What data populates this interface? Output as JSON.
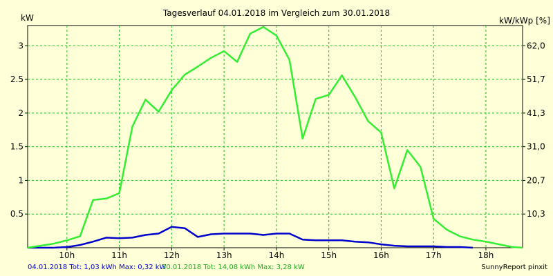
{
  "chart_data": {
    "type": "line",
    "title": "Tagesverlauf 04.01.2018 im Vergleich zum 30.01.2018",
    "ylabel_left": "kW",
    "ylabel_right": "kW/kWp [%]",
    "x_ticks": [
      "10h",
      "11h",
      "12h",
      "13h",
      "14h",
      "15h",
      "16h",
      "17h",
      "18h"
    ],
    "x_range": [
      9.25,
      18.7
    ],
    "y_ticks_left": [
      "0.5",
      "1",
      "1.5",
      "2",
      "2.5",
      "3"
    ],
    "y_ticks_left_values": [
      0.5,
      1,
      1.5,
      2,
      2.5,
      3
    ],
    "ylim_left": [
      0,
      3.3
    ],
    "y_ticks_right": [
      "10,3",
      "20,7",
      "31,0",
      "41,3",
      "51,7",
      "62,0"
    ],
    "grid": true,
    "series": [
      {
        "color": "#0000cc",
        "x": [
          9.25,
          9.5,
          9.75,
          10.0,
          10.25,
          10.5,
          10.75,
          11.0,
          11.25,
          11.5,
          11.75,
          12.0,
          12.25,
          12.5,
          12.75,
          13.0,
          13.25,
          13.5,
          13.75,
          14.0,
          14.25,
          14.5,
          14.75,
          15.0,
          15.25,
          15.5,
          15.75,
          16.0,
          16.25,
          16.5,
          16.75,
          17.0,
          17.25,
          17.5,
          17.75
        ],
        "values": [
          0.0,
          0.0,
          0.0,
          0.01,
          0.04,
          0.09,
          0.15,
          0.14,
          0.15,
          0.19,
          0.21,
          0.31,
          0.29,
          0.16,
          0.2,
          0.21,
          0.21,
          0.21,
          0.19,
          0.21,
          0.21,
          0.12,
          0.11,
          0.11,
          0.11,
          0.09,
          0.08,
          0.05,
          0.03,
          0.02,
          0.02,
          0.02,
          0.01,
          0.01,
          0.0
        ]
      },
      {
        "color": "#33ee33",
        "x": [
          9.25,
          9.5,
          9.75,
          10.0,
          10.25,
          10.5,
          10.75,
          11.0,
          11.25,
          11.5,
          11.75,
          12.0,
          12.25,
          12.5,
          12.75,
          13.0,
          13.25,
          13.5,
          13.75,
          14.0,
          14.25,
          14.5,
          14.75,
          15.0,
          15.25,
          15.5,
          15.75,
          16.0,
          16.25,
          16.5,
          16.75,
          17.0,
          17.25,
          17.5,
          17.75,
          18.0,
          18.25,
          18.5,
          18.7
        ],
        "values": [
          0.0,
          0.03,
          0.06,
          0.11,
          0.17,
          0.71,
          0.73,
          0.81,
          1.8,
          2.2,
          2.02,
          2.34,
          2.57,
          2.69,
          2.82,
          2.92,
          2.76,
          3.18,
          3.28,
          3.15,
          2.79,
          1.62,
          2.21,
          2.27,
          2.56,
          2.24,
          1.88,
          1.71,
          0.88,
          1.45,
          1.2,
          0.43,
          0.27,
          0.17,
          0.12,
          0.09,
          0.05,
          0.01,
          0.0
        ]
      }
    ]
  },
  "footer": {
    "series1_text": "04.01.2018 Tot: 1,03 kWh Max: 0,32 kW",
    "series2_text": "30.01.2018 Tot: 14,08 kWh Max: 3,28 kW",
    "credit": "SunnyReport pinxit"
  }
}
